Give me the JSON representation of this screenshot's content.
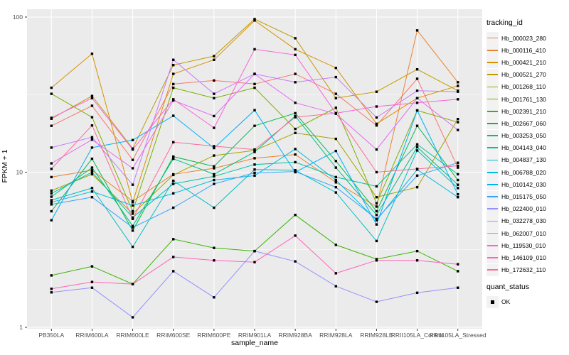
{
  "figure": {
    "panel_background": "#EBEBEB",
    "gridline_color": "#FFFFFF",
    "axis_text_color": "#4D4D4D",
    "tick_color": "#333333",
    "key_background": "#F2F2F2",
    "point_color": "#000000"
  },
  "axes": {
    "x": {
      "title": "sample_name"
    },
    "y": {
      "title": "FPKM + 1",
      "tick_labels": [
        "1",
        "10",
        "100"
      ],
      "tick_values": [
        1,
        10,
        100
      ],
      "minor_values": [
        3.162,
        31.62
      ]
    }
  },
  "legend": {
    "tracking_title": "tracking_id",
    "quant_title": "quant_status",
    "quant_label": "OK"
  },
  "chart_data": {
    "type": "line",
    "title": "",
    "xlabel": "sample_name",
    "ylabel": "FPKM + 1",
    "y_scale": "log10",
    "ylim": [
      1,
      100
    ],
    "grid": true,
    "legend_position": "right",
    "point_shape": "black-square",
    "categories": [
      "PB350LA",
      "RRIM600LA",
      "RRIM600LE",
      "RRIM600SE",
      "RRIM600PE",
      "RRIM901LA",
      "RRIM928BA",
      "RRIM928LA",
      "RRIM928LE",
      "RRII105LA_Control",
      "RRII105LA_Stressed"
    ],
    "series": [
      {
        "name": "Hb_000023_280",
        "color": "#F8766D",
        "values": [
          19.9,
          26.8,
          12.0,
          37,
          39,
          37,
          43,
          32,
          20,
          40,
          10.7
        ]
      },
      {
        "name": "Hb_000116_410",
        "color": "#EA8331",
        "values": [
          9.3,
          10.3,
          6.5,
          9.7,
          10.6,
          12.3,
          13.0,
          8.6,
          6.0,
          82,
          38
        ]
      },
      {
        "name": "Hb_000421_210",
        "color": "#D89000",
        "values": [
          35,
          58,
          6.4,
          43,
          53,
          95,
          62,
          47,
          20.5,
          30,
          36
        ]
      },
      {
        "name": "Hb_000521_270",
        "color": "#C09B00",
        "values": [
          22.1,
          31,
          14.2,
          49,
          56,
          97,
          73,
          30,
          33,
          46,
          33.5
        ]
      },
      {
        "name": "Hb_001268_110",
        "color": "#A3A500",
        "values": [
          7.6,
          9.7,
          5.4,
          9.6,
          12.8,
          13.8,
          17.9,
          16.4,
          6.9,
          8.0,
          22
        ]
      },
      {
        "name": "Hb_001761_130",
        "color": "#7CAE00",
        "values": [
          32,
          22.6,
          5.6,
          35,
          30,
          35,
          19,
          26,
          6.3,
          25,
          21
        ]
      },
      {
        "name": "Hb_002391_210",
        "color": "#39B600",
        "values": [
          2.16,
          2.47,
          1.9,
          3.7,
          3.25,
          3.1,
          5.3,
          3.4,
          2.75,
          3.1,
          2.3
        ]
      },
      {
        "name": "Hb_002667_060",
        "color": "#00BB4E",
        "values": [
          5.6,
          12.2,
          4.2,
          12.6,
          10.9,
          19.9,
          24,
          11.8,
          5.6,
          19.9,
          8.9
        ]
      },
      {
        "name": "Hb_003253_050",
        "color": "#00BF7D",
        "values": [
          6.95,
          10.7,
          4.5,
          12.2,
          9.7,
          13.5,
          23,
          10.7,
          5.3,
          14.5,
          8.3
        ]
      },
      {
        "name": "Hb_004143_040",
        "color": "#00C1A3",
        "values": [
          7.3,
          10.0,
          5.1,
          8.4,
          9.4,
          11.2,
          11.6,
          9.3,
          8.1,
          15.1,
          9.7
        ]
      },
      {
        "name": "Hb_004837_130",
        "color": "#00BFC4",
        "values": [
          6.6,
          7.9,
          3.3,
          8.8,
          5.9,
          10.4,
          10.3,
          7.4,
          3.6,
          13.8,
          7.9
        ]
      },
      {
        "name": "Hb_006788_020",
        "color": "#00BAE0",
        "values": [
          6.4,
          7.5,
          6.1,
          7.3,
          8.9,
          9.5,
          14.1,
          8.9,
          4.9,
          10.4,
          6.9
        ]
      },
      {
        "name": "Hb_010142_030",
        "color": "#00B0F6",
        "values": [
          4.9,
          14.4,
          16.1,
          23.1,
          14.3,
          25.1,
          10.0,
          13.7,
          4.6,
          25,
          7.2
        ]
      },
      {
        "name": "Hb_015175_050",
        "color": "#35A2FF",
        "values": [
          6.2,
          6.9,
          4.4,
          5.9,
          8.4,
          9.9,
          10.1,
          8.0,
          5.0,
          9.5,
          11.5
        ]
      },
      {
        "name": "Hb_022400_010",
        "color": "#9590FF",
        "values": [
          1.68,
          1.8,
          1.16,
          2.3,
          1.56,
          3.1,
          2.66,
          1.84,
          1.46,
          1.67,
          1.8
        ]
      },
      {
        "name": "Hb_032278_030",
        "color": "#C77CFF",
        "values": [
          14.4,
          16.8,
          8.3,
          53,
          32,
          43,
          38,
          41,
          22.5,
          33.5,
          33
        ]
      },
      {
        "name": "Hb_062007_010",
        "color": "#E76BF3",
        "values": [
          11.4,
          16.2,
          10.6,
          29,
          23,
          43,
          28,
          23.8,
          14,
          30,
          18.7
        ]
      },
      {
        "name": "Hb_119530_010",
        "color": "#FA62DB",
        "values": [
          22.4,
          30,
          14.0,
          29.5,
          19.3,
          62,
          57,
          24,
          26.5,
          28,
          29.5
        ]
      },
      {
        "name": "Hb_146109_010",
        "color": "#FF62BC",
        "values": [
          1.77,
          1.96,
          1.9,
          2.84,
          2.7,
          2.63,
          3.9,
          2.23,
          2.7,
          2.7,
          2.55
        ]
      },
      {
        "name": "Hb_172632_110",
        "color": "#FF6A98",
        "values": [
          10.5,
          20,
          5.0,
          15.6,
          14.7,
          14.0,
          22.6,
          24,
          10.0,
          10.5,
          11.0
        ]
      }
    ]
  }
}
